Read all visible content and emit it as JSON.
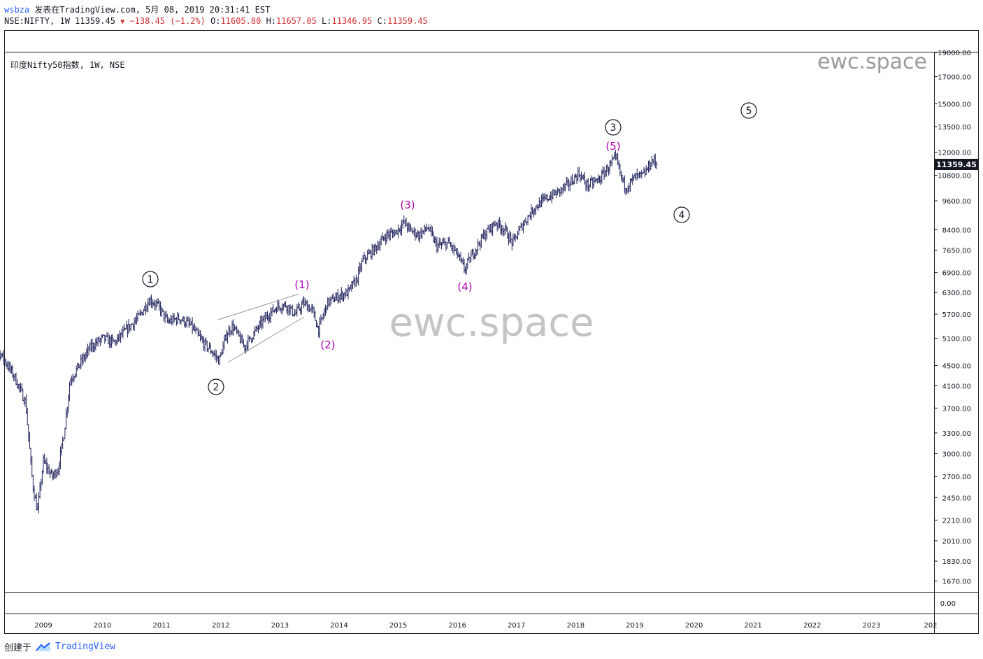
{
  "header": {
    "user": "wsbza",
    "published": "发表在TradingView.com, 5月 08, 2019 20:31:41 EST",
    "symbol": "NSE:NIFTY, 1W",
    "last": "11359.45",
    "change": "−138.45",
    "change_pct": "(−1.2%)",
    "o_label": "O:",
    "o": "11605.80",
    "h_label": "H:",
    "h": "11657.05",
    "l_label": "L:",
    "l": "11346.95",
    "c_label": "C:",
    "c": "11359.45"
  },
  "legend": "印度Nifty50指数, 1W, NSE",
  "watermark": {
    "corner": "ewc.space",
    "center": "ewc.space"
  },
  "price_badge": "11359.45",
  "colors": {
    "bars": "#1c1f5a",
    "wave_minor": "#b000b0",
    "wave_major": "#131722",
    "badge": "#131722",
    "down": "#d32f2f",
    "brand": "#2962ff"
  },
  "chart_data": {
    "type": "ohlc",
    "symbol": "NSE:NIFTY",
    "interval": "1W",
    "x_ticks": [
      "2009",
      "2010",
      "2011",
      "2012",
      "2013",
      "2014",
      "2015",
      "2016",
      "2017",
      "2018",
      "2019",
      "2020",
      "2021",
      "2022",
      "2023",
      "202"
    ],
    "y_ticks": [
      "19000.00",
      "17000.00",
      "15000.00",
      "13500.00",
      "12000.00",
      "10800.00",
      "9600.00",
      "8400.00",
      "7650.00",
      "6900.00",
      "6300.00",
      "5700.00",
      "5100.00",
      "4500.00",
      "4100.00",
      "3700.00",
      "3300.00",
      "3000.00",
      "2700.00",
      "2450.00",
      "2210.00",
      "2010.00",
      "1830.00",
      "1670.00"
    ],
    "lower_pane_tick": "0.00",
    "y_scale": "log",
    "price_path": [
      [
        2008.0,
        5200
      ],
      [
        2008.3,
        4700
      ],
      [
        2008.5,
        4300
      ],
      [
        2008.7,
        3800
      ],
      [
        2008.82,
        2600
      ],
      [
        2008.9,
        2300
      ],
      [
        2009.0,
        2900
      ],
      [
        2009.15,
        2700
      ],
      [
        2009.25,
        2800
      ],
      [
        2009.35,
        3300
      ],
      [
        2009.45,
        4200
      ],
      [
        2009.6,
        4500
      ],
      [
        2009.8,
        4900
      ],
      [
        2010.0,
        5100
      ],
      [
        2010.2,
        5000
      ],
      [
        2010.4,
        5300
      ],
      [
        2010.6,
        5600
      ],
      [
        2010.8,
        6100
      ],
      [
        2010.95,
        5900
      ],
      [
        2011.1,
        5500
      ],
      [
        2011.3,
        5600
      ],
      [
        2011.5,
        5400
      ],
      [
        2011.7,
        5000
      ],
      [
        2011.85,
        4800
      ],
      [
        2011.97,
        4600
      ],
      [
        2012.1,
        5200
      ],
      [
        2012.2,
        5400
      ],
      [
        2012.4,
        4900
      ],
      [
        2012.55,
        5200
      ],
      [
        2012.75,
        5600
      ],
      [
        2012.95,
        5900
      ],
      [
        2013.1,
        5950
      ],
      [
        2013.25,
        5700
      ],
      [
        2013.4,
        6000
      ],
      [
        2013.55,
        5800
      ],
      [
        2013.65,
        5300
      ],
      [
        2013.8,
        6000
      ],
      [
        2014.0,
        6200
      ],
      [
        2014.15,
        6300
      ],
      [
        2014.3,
        6700
      ],
      [
        2014.4,
        7300
      ],
      [
        2014.6,
        7700
      ],
      [
        2014.8,
        8200
      ],
      [
        2014.95,
        8300
      ],
      [
        2015.1,
        8700
      ],
      [
        2015.2,
        8400
      ],
      [
        2015.35,
        8200
      ],
      [
        2015.5,
        8500
      ],
      [
        2015.65,
        7800
      ],
      [
        2015.85,
        7900
      ],
      [
        2016.0,
        7500
      ],
      [
        2016.12,
        7000
      ],
      [
        2016.25,
        7500
      ],
      [
        2016.45,
        8200
      ],
      [
        2016.65,
        8700
      ],
      [
        2016.8,
        8400
      ],
      [
        2016.93,
        7900
      ],
      [
        2017.1,
        8600
      ],
      [
        2017.3,
        9300
      ],
      [
        2017.5,
        9700
      ],
      [
        2017.7,
        10000
      ],
      [
        2017.9,
        10400
      ],
      [
        2018.05,
        10900
      ],
      [
        2018.2,
        10300
      ],
      [
        2018.4,
        10600
      ],
      [
        2018.55,
        11200
      ],
      [
        2018.68,
        11700
      ],
      [
        2018.78,
        10600
      ],
      [
        2018.85,
        10200
      ],
      [
        2019.0,
        10700
      ],
      [
        2019.15,
        10800
      ],
      [
        2019.3,
        11600
      ],
      [
        2019.37,
        11360
      ]
    ],
    "wave_labels": [
      {
        "text": "1",
        "style": "circled"
      },
      {
        "text": "2",
        "style": "circled"
      },
      {
        "text": "3",
        "style": "circled"
      },
      {
        "text": "4",
        "style": "circled"
      },
      {
        "text": "5",
        "style": "circled"
      },
      {
        "text": "(1)",
        "style": "minor"
      },
      {
        "text": "(2)",
        "style": "minor"
      },
      {
        "text": "(3)",
        "style": "minor"
      },
      {
        "text": "(4)",
        "style": "minor"
      },
      {
        "text": "(5)",
        "style": "minor"
      }
    ],
    "diagonal_lines": 2
  },
  "footer": {
    "created_by": "创建于",
    "brand": "TradingView"
  }
}
